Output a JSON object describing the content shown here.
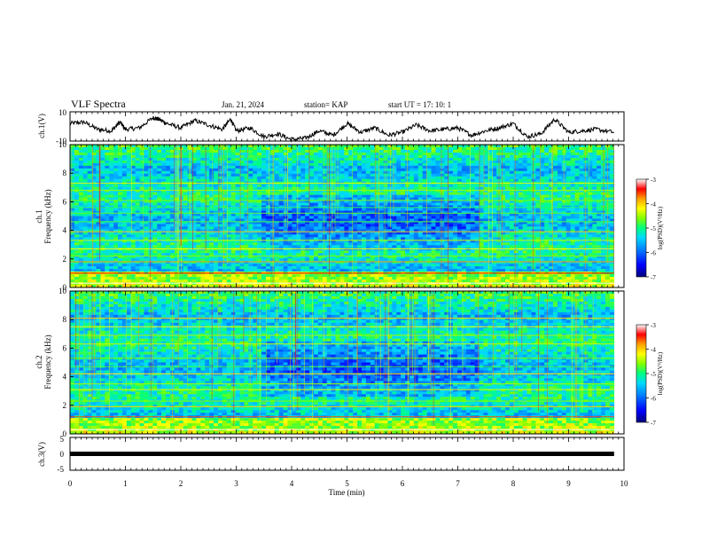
{
  "header": {
    "title": "VLF Spectra",
    "date": "Jan. 21, 2024",
    "station": "station= KAP",
    "start": "start  UT =   17: 10: 1"
  },
  "chart_data": [
    {
      "type": "line",
      "name": "ch1-voltage",
      "ylabel": "ch.1(V)",
      "ylim": [
        -10,
        10
      ],
      "yticks": [
        "10",
        "-10"
      ],
      "xlim": [
        0,
        10
      ],
      "x": [
        0,
        0.25,
        0.5,
        0.75,
        0.9,
        1.0,
        1.25,
        1.5,
        1.6,
        1.75,
        2.0,
        2.25,
        2.5,
        2.75,
        2.9,
        3.0,
        3.25,
        3.5,
        3.75,
        4.0,
        4.25,
        4.5,
        4.75,
        5.0,
        5.25,
        5.5,
        5.75,
        6.0,
        6.25,
        6.5,
        6.75,
        7.0,
        7.25,
        7.5,
        7.75,
        8.0,
        8.25,
        8.5,
        8.75,
        9.0,
        9.25,
        9.5,
        9.82
      ],
      "values": [
        2,
        3,
        -2,
        -3,
        3,
        -2,
        -1,
        6,
        5,
        2,
        -1,
        4,
        1,
        -2,
        5,
        -3,
        -1,
        -7,
        -5,
        -9,
        -8,
        -3,
        -6,
        2,
        -4,
        -1,
        -6,
        -4,
        1,
        -3,
        -2,
        -1,
        -6,
        -3,
        -1,
        2,
        -7,
        -5,
        5,
        -4,
        -3,
        -2,
        -4
      ]
    },
    {
      "type": "heatmap",
      "name": "ch1-spectrogram",
      "ylabel": "ch.1\nFrequency (kHz)",
      "ylim": [
        0,
        10
      ],
      "yticks": [
        "0",
        "2",
        "4",
        "6",
        "8",
        "10"
      ],
      "xlim": [
        0,
        10
      ],
      "colorbar": {
        "label": "log(PSD)(V²/Hz)",
        "range": [
          -7,
          -3
        ],
        "ticks": [
          "-3",
          "-4",
          "-5",
          "-6",
          "-7"
        ]
      },
      "bands_khz": [
        0.3,
        1.0,
        1.8,
        2.2,
        2.7,
        3.3,
        3.9,
        4.6,
        5.2,
        5.6,
        6.1,
        6.8,
        7.3
      ],
      "band_levels": [
        -3.6,
        -4.4,
        -4.8,
        -5.6,
        -5.2,
        -5.4,
        -5.0,
        -5.8,
        -5.7,
        -5.9,
        -5.6,
        -5.5,
        -5.3
      ]
    },
    {
      "type": "heatmap",
      "name": "ch2-spectrogram",
      "ylabel": "ch.2\nFrequency (kHz)",
      "ylim": [
        0,
        10
      ],
      "yticks": [
        "0",
        "2",
        "4",
        "6",
        "8",
        "10"
      ],
      "xlim": [
        0,
        10
      ],
      "colorbar": {
        "label": "log(PSD)(V²/Hz)",
        "range": [
          -7,
          -3
        ],
        "ticks": [
          "-3",
          "-4",
          "-5",
          "-6",
          "-7"
        ]
      },
      "bands_khz": [
        0.3,
        1.2,
        1.9,
        2.3,
        3.1,
        3.5,
        4.2,
        4.7,
        5.3,
        6.3,
        6.9,
        7.5,
        8.1
      ],
      "band_levels": [
        -3.6,
        -4.6,
        -5.0,
        -5.6,
        -5.3,
        -5.5,
        -5.1,
        -5.8,
        -5.6,
        -5.4,
        -5.5,
        -5.2,
        -5.0
      ]
    },
    {
      "type": "line",
      "name": "ch3-voltage",
      "ylabel": "ch.3(V)",
      "ylim": [
        -5,
        5
      ],
      "yticks": [
        "5",
        "0",
        "-5"
      ],
      "xlim": [
        0,
        10
      ],
      "x": [
        0,
        9.82
      ],
      "values": [
        0,
        0
      ]
    }
  ],
  "xaxis": {
    "label": "Time (min)",
    "ticks": [
      "0",
      "1",
      "2",
      "3",
      "4",
      "5",
      "6",
      "7",
      "8",
      "9",
      "10"
    ]
  },
  "colors": {
    "colormap": [
      "#00007a",
      "#0000ff",
      "#0080ff",
      "#00d8ff",
      "#00ff80",
      "#80ff00",
      "#ffff00",
      "#ffa000",
      "#ff0000",
      "#ffffff"
    ]
  }
}
